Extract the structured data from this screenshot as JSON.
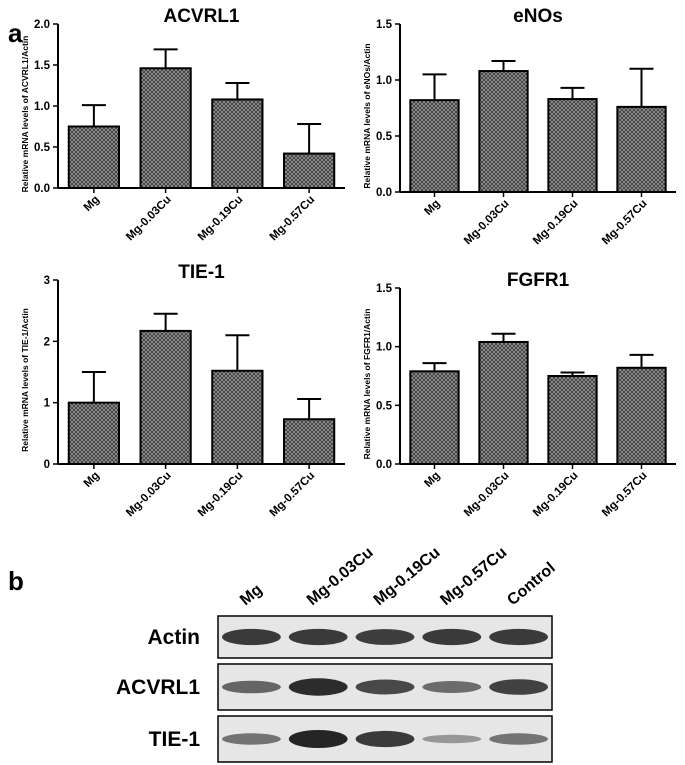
{
  "panel_labels": {
    "a": "a",
    "b": "b"
  },
  "chart_data": [
    {
      "type": "bar",
      "title": "ACVRL1",
      "ylabel": "Relative mRNA levels of ACVRL1/Actin",
      "categories": [
        "Mg",
        "Mg-0.03Cu",
        "Mg-0.19Cu",
        "Mg-0.57Cu"
      ],
      "values": [
        0.75,
        1.46,
        1.08,
        0.42
      ],
      "errors": [
        0.26,
        0.23,
        0.2,
        0.36
      ],
      "ylim": [
        0,
        2.0
      ],
      "yticks": [
        "0.0",
        "0.5",
        "1.0",
        "1.5",
        "2.0"
      ],
      "grid": false
    },
    {
      "type": "bar",
      "title": "eNOs",
      "ylabel": "Relative mRNA levels of eNOs/Actin",
      "categories": [
        "Mg",
        "Mg-0.03Cu",
        "Mg-0.19Cu",
        "Mg-0.57Cu"
      ],
      "values": [
        0.82,
        1.08,
        0.83,
        0.76
      ],
      "errors": [
        0.23,
        0.09,
        0.1,
        0.34
      ],
      "ylim": [
        0,
        1.5
      ],
      "yticks": [
        "0.0",
        "0.5",
        "1.0",
        "1.5"
      ],
      "grid": false
    },
    {
      "type": "bar",
      "title": "TIE-1",
      "ylabel": "Relative mRNA levels of TIE-1/Actin",
      "categories": [
        "Mg",
        "Mg-0.03Cu",
        "Mg-0.19Cu",
        "Mg-0.57Cu"
      ],
      "values": [
        1.0,
        2.17,
        1.52,
        0.73
      ],
      "errors": [
        0.5,
        0.28,
        0.58,
        0.33
      ],
      "ylim": [
        0,
        3
      ],
      "yticks": [
        "0",
        "1",
        "2",
        "3"
      ],
      "grid": false
    },
    {
      "type": "bar",
      "title": "FGFR1",
      "ylabel": "Relative mRNA levels of FGFR1/Actin",
      "categories": [
        "Mg",
        "Mg-0.03Cu",
        "Mg-0.19Cu",
        "Mg-0.57Cu"
      ],
      "values": [
        0.79,
        1.04,
        0.75,
        0.82
      ],
      "errors": [
        0.07,
        0.07,
        0.03,
        0.11
      ],
      "ylim": [
        0,
        1.5
      ],
      "yticks": [
        "0.0",
        "0.5",
        "1.0",
        "1.5"
      ],
      "grid": false
    }
  ],
  "blot": {
    "lanes": [
      "Mg",
      "Mg-0.03Cu",
      "Mg-0.19Cu",
      "Mg-0.57Cu",
      "Control"
    ],
    "rows": [
      {
        "label": "Actin",
        "intensity": [
          0.85,
          0.85,
          0.82,
          0.85,
          0.85
        ]
      },
      {
        "label": "ACVRL1",
        "intensity": [
          0.55,
          0.95,
          0.75,
          0.5,
          0.8
        ]
      },
      {
        "label": "TIE-1",
        "intensity": [
          0.45,
          1.0,
          0.85,
          0.2,
          0.45
        ]
      }
    ],
    "colors": {
      "background": "#e6e6e6",
      "band": "#1a1a1a"
    }
  },
  "colors": {
    "bar_fill": "#6e6e6e",
    "axis": "#000000"
  }
}
